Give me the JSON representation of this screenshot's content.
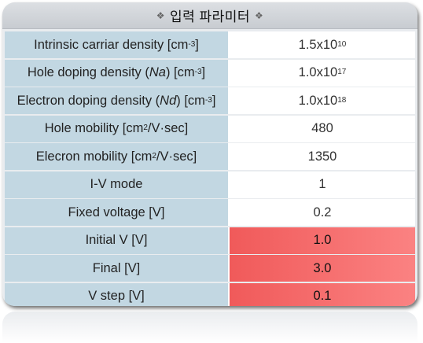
{
  "header": {
    "title": "입력 파라미터",
    "deco_left": "❖",
    "deco_right": "❖"
  },
  "rows": [
    {
      "label_pre": "Intrinsic carriar density [cm",
      "label_sup": "-3",
      "label_post": "]",
      "value_base": "1.5x10",
      "value_sup": "10"
    },
    {
      "label_pre": "Hole doping density (",
      "label_it": "Na",
      "label_mid": ") [cm",
      "label_sup": "-3",
      "label_post": "]",
      "value_base": "1.0x10",
      "value_sup": "17"
    },
    {
      "label_pre": "Electron doping density (",
      "label_it": "Nd",
      "label_mid": ") [cm",
      "label_sup": "-3",
      "label_post": "]",
      "value_base": "1.0x10",
      "value_sup": "18"
    },
    {
      "label_pre": "Hole mobility [cm",
      "label_sup": "2",
      "label_post": "/V·sec]",
      "value": "480"
    },
    {
      "label_pre": "Elecron mobility [cm",
      "label_sup": "2",
      "label_post": "/V·sec]",
      "value": "1350"
    },
    {
      "label": "I-V mode",
      "value": "1"
    },
    {
      "label": "Fixed voltage [V]",
      "value": "0.2"
    },
    {
      "label": "Initial V [V]",
      "value": "1.0"
    },
    {
      "label": "Final [V]",
      "value": "3.0"
    },
    {
      "label": "V step [V]",
      "value": "0.1"
    }
  ],
  "colors": {
    "label_bg": "#c2d7e2",
    "value_bg": "#ffffff",
    "highlight_bg": "#f26a6a"
  }
}
